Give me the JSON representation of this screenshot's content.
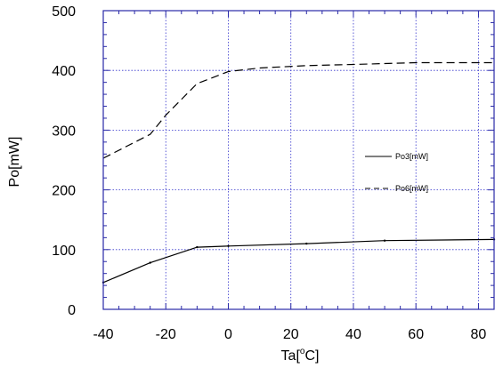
{
  "chart_data": {
    "type": "line",
    "title": "",
    "xlabel": "Ta[°C]",
    "xlabel_parts": {
      "base": "Ta[",
      "sup": "o",
      "tail": "C]"
    },
    "ylabel": "Po[mW]",
    "xlim": [
      -40,
      85
    ],
    "ylim": [
      0,
      500
    ],
    "xticks": [
      -40,
      -20,
      0,
      20,
      40,
      60,
      80
    ],
    "yticks": [
      0,
      100,
      200,
      300,
      400,
      500
    ],
    "grid": true,
    "grid_color": "#3333cc",
    "frame_color": "#2a2aa8",
    "legend_position": "right-middle",
    "series": [
      {
        "name": "Po3[mW]",
        "style": "solid",
        "color": "#000000",
        "x": [
          -40,
          -25,
          -10,
          0,
          25,
          50,
          85
        ],
        "y": [
          45,
          78,
          104,
          106,
          110,
          115,
          117
        ]
      },
      {
        "name": "Po6[mW]",
        "style": "dashed",
        "color": "#000000",
        "x": [
          -40,
          -25,
          -20,
          -10,
          0,
          10,
          25,
          40,
          60,
          85
        ],
        "y": [
          253,
          293,
          325,
          378,
          398,
          404,
          408,
          410,
          413,
          413
        ]
      }
    ]
  }
}
